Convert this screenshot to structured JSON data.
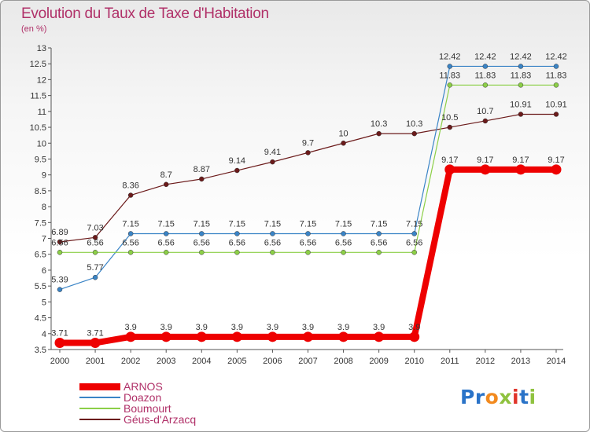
{
  "header": {
    "title": "Evolution du Taux de Taxe d'Habitation",
    "subtitle": "(en %)"
  },
  "logo": {
    "letters": [
      "P",
      "r",
      "o",
      "x",
      "i",
      "t",
      "i"
    ],
    "colors": [
      "#2a73c8",
      "#2a73c8",
      "#f28a1f",
      "#8fc23f",
      "#e0342a",
      "#2a73c8",
      "#8fc23f"
    ]
  },
  "chart_data": {
    "type": "line",
    "x": [
      2000,
      2001,
      2002,
      2003,
      2004,
      2005,
      2006,
      2007,
      2008,
      2009,
      2010,
      2011,
      2012,
      2013,
      2014
    ],
    "ylim": [
      3.5,
      13
    ],
    "yticks": [
      3.5,
      4,
      4.5,
      5,
      5.5,
      6,
      6.5,
      7,
      7.5,
      8,
      8.5,
      9,
      9.5,
      10,
      10.5,
      11,
      11.5,
      12,
      12.5,
      13
    ],
    "grid": false,
    "legend_position": "bottom-left",
    "series": [
      {
        "name": "Géus-d'Arzacq",
        "color": "#6b1a1a",
        "values": [
          6.89,
          7.03,
          8.36,
          8.7,
          8.87,
          9.14,
          9.41,
          9.7,
          10,
          10.3,
          10.3,
          10.5,
          10.7,
          10.91,
          10.91
        ],
        "labels": [
          "6.89",
          "7.03",
          "8.36",
          "8.7",
          "8.87",
          "9.14",
          "9.41",
          "9.7",
          "10",
          "10.3",
          "10.3",
          "10.5",
          "10.7",
          "10.91",
          "10.91"
        ]
      },
      {
        "name": "Doazon",
        "color": "#3a84c6",
        "values": [
          5.39,
          5.77,
          7.15,
          7.15,
          7.15,
          7.15,
          7.15,
          7.15,
          7.15,
          7.15,
          7.15,
          12.42,
          12.42,
          12.42,
          12.42
        ],
        "labels": [
          "5.39",
          "5.77",
          "7.15",
          "7.15",
          "7.15",
          "7.15",
          "7.15",
          "7.15",
          "7.15",
          "7.15",
          "7.15",
          "12.42",
          "12.42",
          "12.42",
          "12.42"
        ]
      },
      {
        "name": "Boumourt",
        "color": "#8ccf47",
        "values": [
          6.56,
          6.56,
          6.56,
          6.56,
          6.56,
          6.56,
          6.56,
          6.56,
          6.56,
          6.56,
          6.56,
          11.83,
          11.83,
          11.83,
          11.83
        ],
        "labels": [
          "6.56",
          "6.56",
          "6.56",
          "6.56",
          "6.56",
          "6.56",
          "6.56",
          "6.56",
          "6.56",
          "6.56",
          "6.56",
          "11.83",
          "11.83",
          "11.83",
          "11.83"
        ]
      },
      {
        "name": "ARNOS",
        "color": "#ee0000",
        "values": [
          3.71,
          3.71,
          3.9,
          3.9,
          3.9,
          3.9,
          3.9,
          3.9,
          3.9,
          3.9,
          3.9,
          9.17,
          9.17,
          9.17,
          9.17
        ],
        "labels": [
          "3.71",
          "3.71",
          "3.9",
          "3.9",
          "3.9",
          "3.9",
          "3.9",
          "3.9",
          "3.9",
          "3.9",
          "3.9",
          "9.17",
          "9.17",
          "9.17",
          "9.17"
        ]
      }
    ],
    "legend": [
      "ARNOS",
      "Doazon",
      "Boumourt",
      "Géus-d'Arzacq"
    ]
  }
}
